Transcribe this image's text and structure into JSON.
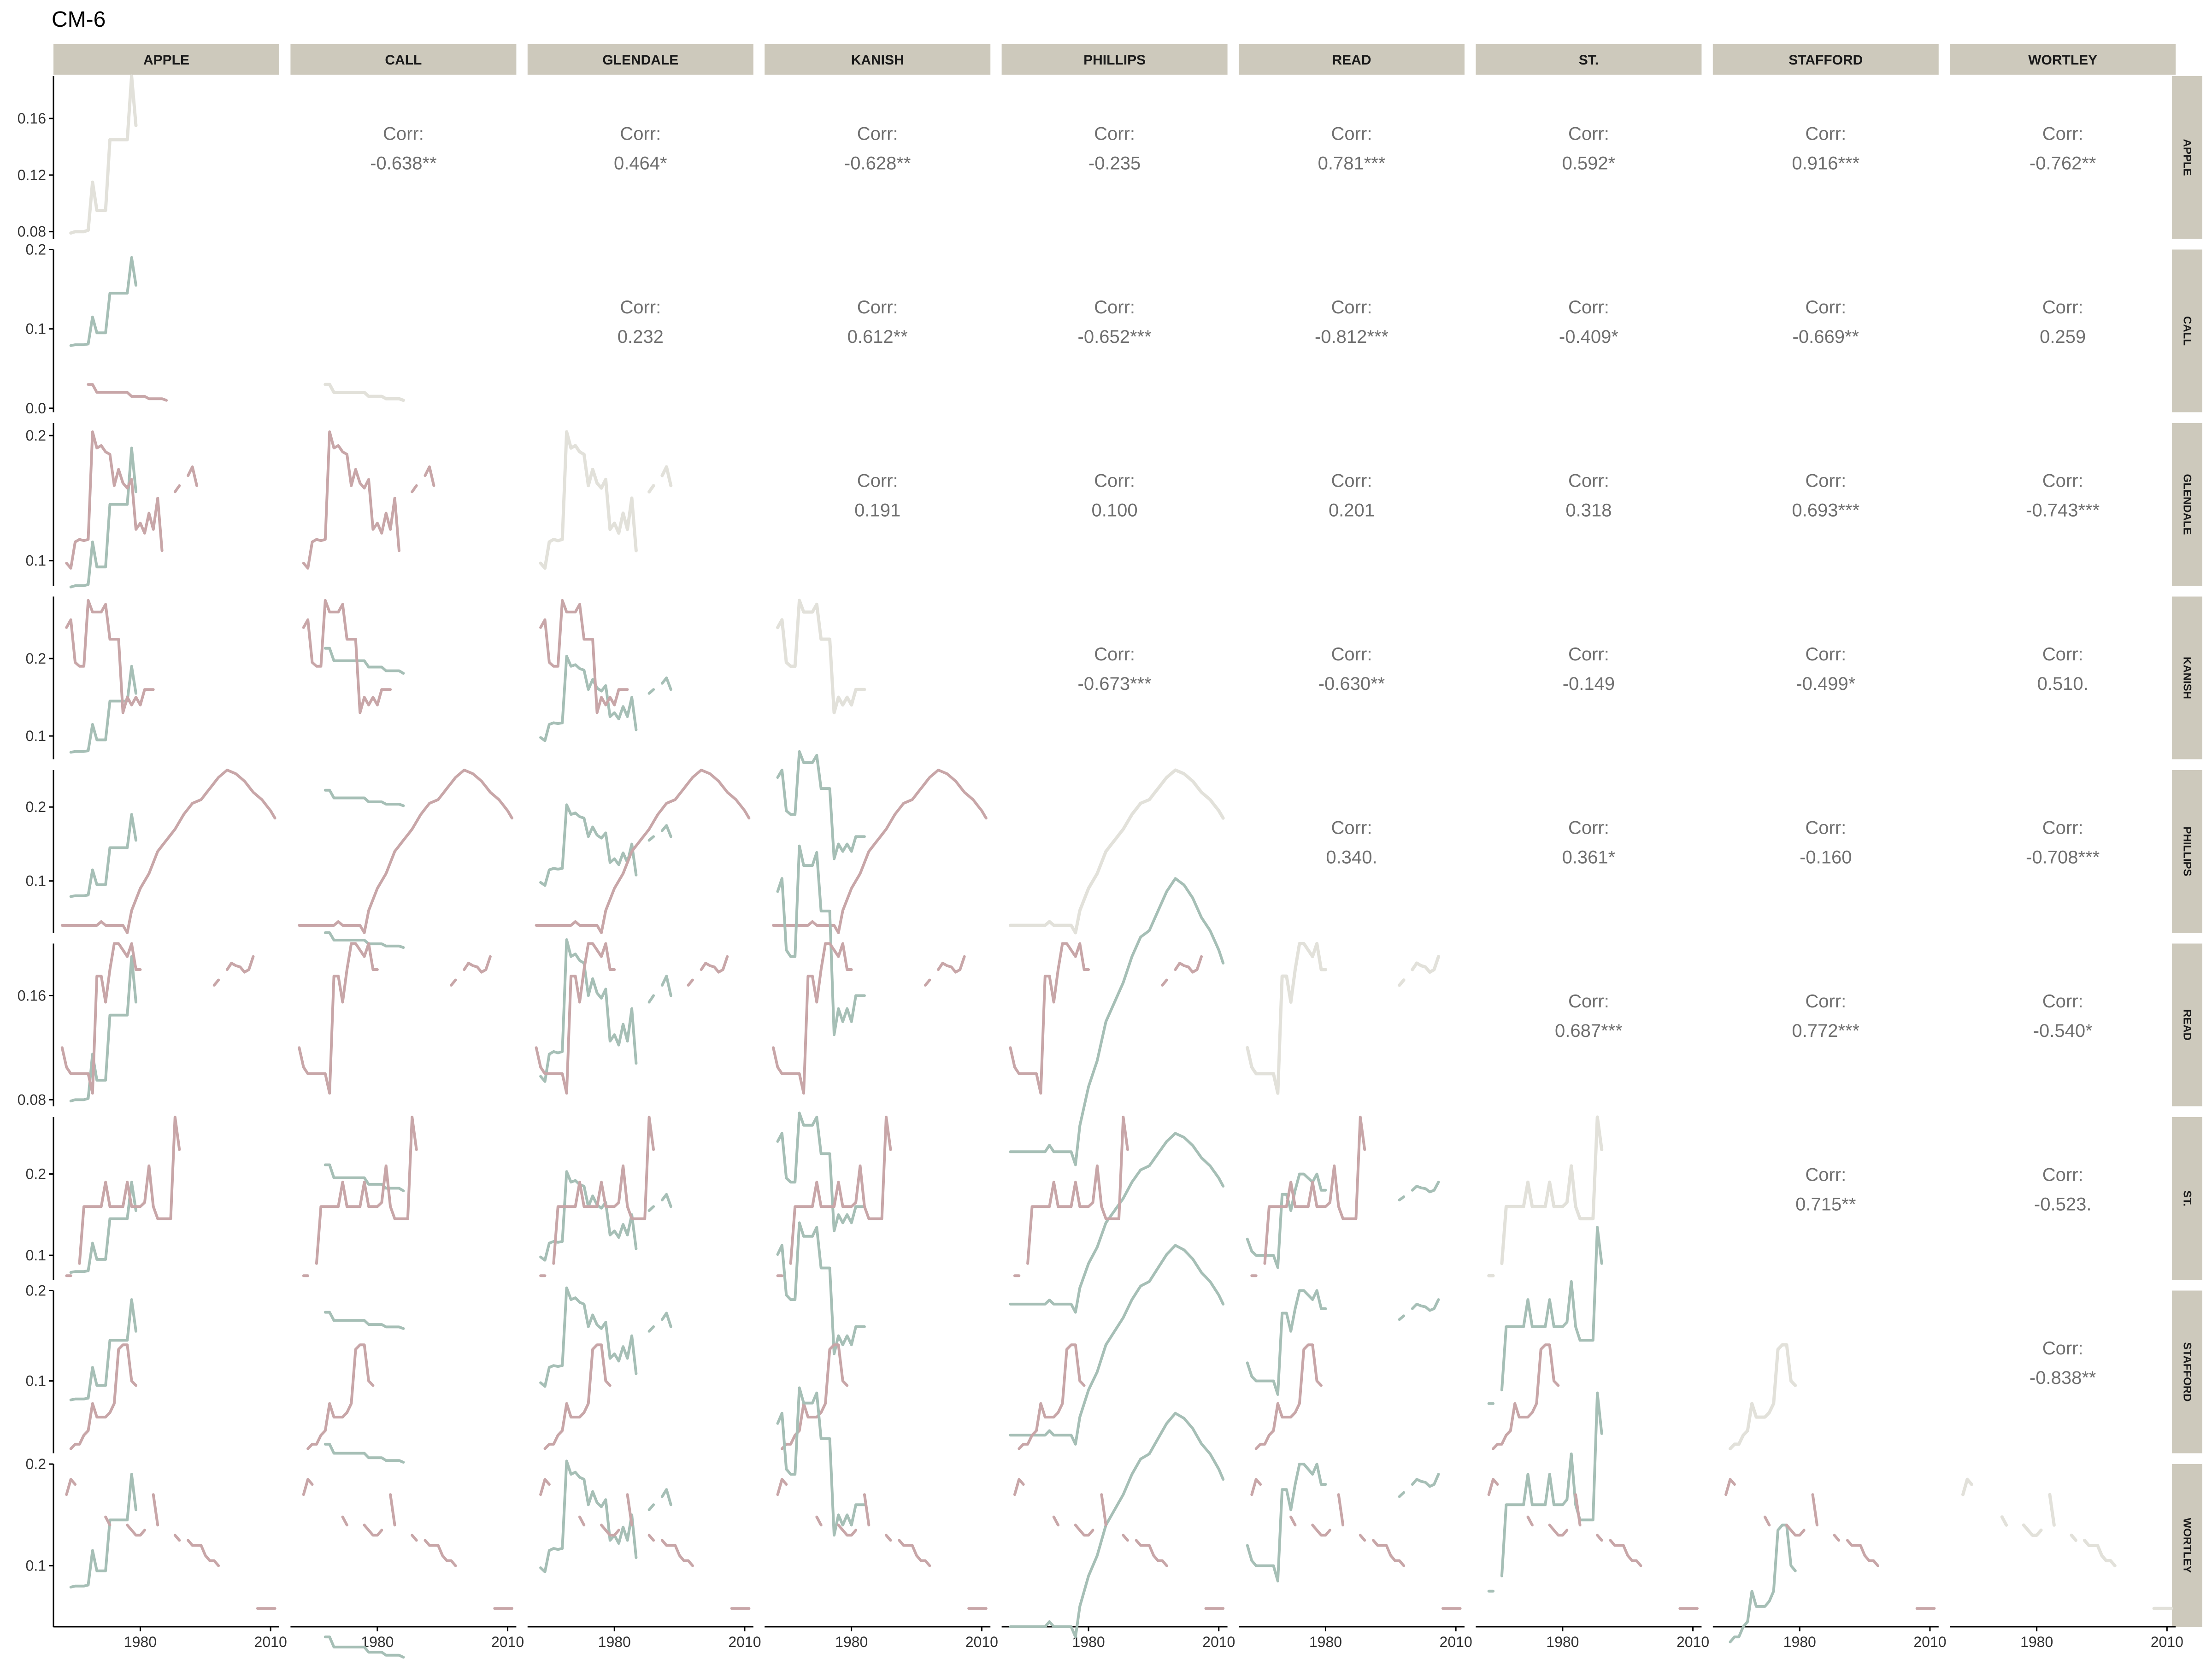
{
  "title": "CM-6",
  "chart_data": {
    "type": "pairs-matrix",
    "title": "CM-6",
    "variables": [
      "APPLE",
      "CALL",
      "GLENDALE",
      "KANISH",
      "PHILLIPS",
      "READ",
      "ST.",
      "STAFFORD",
      "WORTLEY"
    ],
    "x_range": [
      1960,
      2012
    ],
    "x_ticks": [
      1980,
      2010
    ],
    "x_tick_labels": [
      "1980",
      "2010"
    ],
    "row_axes": [
      {
        "ylim": [
          0.075,
          0.19
        ],
        "ticks": [
          0.08,
          0.12,
          0.16
        ],
        "tick_labels": [
          "0.08",
          "0.12",
          "0.16"
        ]
      },
      {
        "ylim": [
          -0.005,
          0.2
        ],
        "ticks": [
          0.0,
          0.1,
          0.2
        ],
        "tick_labels": [
          "0.0",
          "0.1",
          "0.2"
        ]
      },
      {
        "ylim": [
          0.08,
          0.21
        ],
        "ticks": [
          0.1,
          0.2
        ],
        "tick_labels": [
          "0.1",
          "0.2"
        ]
      },
      {
        "ylim": [
          0.07,
          0.28
        ],
        "ticks": [
          0.1,
          0.2
        ],
        "tick_labels": [
          "0.1",
          "0.2"
        ]
      },
      {
        "ylim": [
          0.03,
          0.25
        ],
        "ticks": [
          0.1,
          0.2
        ],
        "tick_labels": [
          "0.1",
          "0.2"
        ]
      },
      {
        "ylim": [
          0.075,
          0.2
        ],
        "ticks": [
          0.08,
          0.16
        ],
        "tick_labels": [
          "0.08",
          "0.16"
        ]
      },
      {
        "ylim": [
          0.07,
          0.27
        ],
        "ticks": [
          0.1,
          0.2
        ],
        "tick_labels": [
          "0.1",
          "0.2"
        ]
      },
      {
        "ylim": [
          0.02,
          0.2
        ],
        "ticks": [
          0.1,
          0.2
        ],
        "tick_labels": [
          "0.1",
          "0.2"
        ]
      },
      {
        "ylim": [
          0.04,
          0.2
        ],
        "ticks": [
          0.1,
          0.2
        ],
        "tick_labels": [
          "0.1",
          "0.2"
        ]
      }
    ],
    "correlation_label": "Corr:",
    "correlations": [
      {
        "row": 0,
        "col": 1,
        "value": "-0.638**"
      },
      {
        "row": 0,
        "col": 2,
        "value": "0.464*"
      },
      {
        "row": 0,
        "col": 3,
        "value": "-0.628**"
      },
      {
        "row": 0,
        "col": 4,
        "value": "-0.235"
      },
      {
        "row": 0,
        "col": 5,
        "value": "0.781***"
      },
      {
        "row": 0,
        "col": 6,
        "value": "0.592*"
      },
      {
        "row": 0,
        "col": 7,
        "value": "0.916***"
      },
      {
        "row": 0,
        "col": 8,
        "value": "-0.762**"
      },
      {
        "row": 1,
        "col": 2,
        "value": "0.232"
      },
      {
        "row": 1,
        "col": 3,
        "value": "0.612**"
      },
      {
        "row": 1,
        "col": 4,
        "value": "-0.652***"
      },
      {
        "row": 1,
        "col": 5,
        "value": "-0.812***"
      },
      {
        "row": 1,
        "col": 6,
        "value": "-0.409*"
      },
      {
        "row": 1,
        "col": 7,
        "value": "-0.669**"
      },
      {
        "row": 1,
        "col": 8,
        "value": "0.259"
      },
      {
        "row": 2,
        "col": 3,
        "value": "0.191"
      },
      {
        "row": 2,
        "col": 4,
        "value": "0.100"
      },
      {
        "row": 2,
        "col": 5,
        "value": "0.201"
      },
      {
        "row": 2,
        "col": 6,
        "value": "0.318"
      },
      {
        "row": 2,
        "col": 7,
        "value": "0.693***"
      },
      {
        "row": 2,
        "col": 8,
        "value": "-0.743***"
      },
      {
        "row": 3,
        "col": 4,
        "value": "-0.673***"
      },
      {
        "row": 3,
        "col": 5,
        "value": "-0.630**"
      },
      {
        "row": 3,
        "col": 6,
        "value": "-0.149"
      },
      {
        "row": 3,
        "col": 7,
        "value": "-0.499*"
      },
      {
        "row": 3,
        "col": 8,
        "value": "0.510."
      },
      {
        "row": 4,
        "col": 5,
        "value": "0.340."
      },
      {
        "row": 4,
        "col": 6,
        "value": "0.361*"
      },
      {
        "row": 4,
        "col": 7,
        "value": "-0.160"
      },
      {
        "row": 4,
        "col": 8,
        "value": "-0.708***"
      },
      {
        "row": 5,
        "col": 6,
        "value": "0.687***"
      },
      {
        "row": 5,
        "col": 7,
        "value": "0.772***"
      },
      {
        "row": 5,
        "col": 8,
        "value": "-0.540*"
      },
      {
        "row": 6,
        "col": 7,
        "value": "0.715**"
      },
      {
        "row": 6,
        "col": 8,
        "value": "-0.523."
      },
      {
        "row": 7,
        "col": 8,
        "value": "-0.838**"
      }
    ],
    "series": {
      "APPLE": [
        [
          1964,
          0.079
        ],
        [
          1965,
          0.08
        ],
        [
          1966,
          0.08
        ],
        [
          1967,
          0.08
        ],
        [
          1968,
          0.081
        ],
        [
          1969,
          0.115
        ],
        [
          1970,
          0.095
        ],
        [
          1971,
          0.095
        ],
        [
          1972,
          0.095
        ],
        [
          1973,
          0.145
        ],
        [
          1974,
          0.145
        ],
        [
          1975,
          0.145
        ],
        [
          1976,
          0.145
        ],
        [
          1977,
          0.145
        ],
        [
          1978,
          0.19
        ],
        [
          1979,
          0.155
        ]
      ],
      "CALL": [
        [
          1966,
          0.033
        ],
        [
          null,
          null
        ],
        [
          1968,
          0.03
        ],
        [
          1969,
          0.03
        ],
        [
          1970,
          0.02
        ],
        [
          1971,
          0.02
        ],
        [
          1972,
          0.02
        ],
        [
          1973,
          0.02
        ],
        [
          1974,
          0.02
        ],
        [
          1975,
          0.02
        ],
        [
          1976,
          0.02
        ],
        [
          1977,
          0.02
        ],
        [
          1978,
          0.015
        ],
        [
          1979,
          0.015
        ],
        [
          1980,
          0.015
        ],
        [
          1981,
          0.015
        ],
        [
          1982,
          0.012
        ],
        [
          1983,
          0.012
        ],
        [
          1984,
          0.012
        ],
        [
          1985,
          0.012
        ],
        [
          1986,
          0.01
        ]
      ],
      "GLENDALE": [
        [
          1963,
          0.098
        ],
        [
          1964,
          0.094
        ],
        [
          1965,
          0.115
        ],
        [
          1966,
          0.117
        ],
        [
          1967,
          0.116
        ],
        [
          1968,
          0.117
        ],
        [
          1969,
          0.203
        ],
        [
          1970,
          0.19
        ],
        [
          1971,
          0.192
        ],
        [
          1972,
          0.187
        ],
        [
          1973,
          0.185
        ],
        [
          1974,
          0.16
        ],
        [
          1975,
          0.173
        ],
        [
          1976,
          0.162
        ],
        [
          1977,
          0.158
        ],
        [
          1978,
          0.165
        ],
        [
          1979,
          0.125
        ],
        [
          1980,
          0.13
        ],
        [
          1981,
          0.122
        ],
        [
          1982,
          0.138
        ],
        [
          1983,
          0.125
        ],
        [
          1984,
          0.15
        ],
        [
          1985,
          0.108
        ],
        [
          null,
          null
        ],
        [
          1988,
          0.155
        ],
        [
          1989,
          0.16
        ],
        [
          null,
          null
        ],
        [
          1991,
          0.168
        ],
        [
          1992,
          0.175
        ],
        [
          1993,
          0.16
        ]
      ],
      "KANISH": [
        [
          1963,
          0.24
        ],
        [
          1964,
          0.25
        ],
        [
          1965,
          0.195
        ],
        [
          1966,
          0.19
        ],
        [
          1967,
          0.19
        ],
        [
          1968,
          0.275
        ],
        [
          1969,
          0.26
        ],
        [
          1970,
          0.26
        ],
        [
          1971,
          0.26
        ],
        [
          1972,
          0.27
        ],
        [
          1973,
          0.225
        ],
        [
          1974,
          0.225
        ],
        [
          1975,
          0.225
        ],
        [
          1976,
          0.13
        ],
        [
          1977,
          0.15
        ],
        [
          1978,
          0.14
        ],
        [
          1979,
          0.15
        ],
        [
          1980,
          0.14
        ],
        [
          1981,
          0.16
        ],
        [
          1982,
          0.16
        ],
        [
          1983,
          0.16
        ]
      ],
      "PHILLIPS": [
        [
          1962,
          0.04
        ],
        [
          1964,
          0.04
        ],
        [
          1966,
          0.04
        ],
        [
          1968,
          0.04
        ],
        [
          1970,
          0.04
        ],
        [
          1971,
          0.045
        ],
        [
          1972,
          0.04
        ],
        [
          1974,
          0.04
        ],
        [
          1976,
          0.04
        ],
        [
          1977,
          0.03
        ],
        [
          1978,
          0.06
        ],
        [
          1980,
          0.09
        ],
        [
          1982,
          0.11
        ],
        [
          1984,
          0.14
        ],
        [
          1986,
          0.155
        ],
        [
          1988,
          0.17
        ],
        [
          1990,
          0.19
        ],
        [
          1992,
          0.205
        ],
        [
          1994,
          0.21
        ],
        [
          1996,
          0.225
        ],
        [
          1998,
          0.24
        ],
        [
          2000,
          0.25
        ],
        [
          2002,
          0.245
        ],
        [
          2004,
          0.235
        ],
        [
          2006,
          0.22
        ],
        [
          2008,
          0.21
        ],
        [
          2010,
          0.195
        ],
        [
          2011,
          0.185
        ]
      ],
      "READ": [
        [
          1962,
          0.12
        ],
        [
          1963,
          0.105
        ],
        [
          1964,
          0.1
        ],
        [
          1965,
          0.1
        ],
        [
          1966,
          0.1
        ],
        [
          1967,
          0.1
        ],
        [
          1968,
          0.1
        ],
        [
          1969,
          0.085
        ],
        [
          1970,
          0.175
        ],
        [
          1971,
          0.175
        ],
        [
          1972,
          0.155
        ],
        [
          1973,
          0.18
        ],
        [
          1974,
          0.2
        ],
        [
          1975,
          0.2
        ],
        [
          1976,
          0.195
        ],
        [
          1977,
          0.19
        ],
        [
          1978,
          0.2
        ],
        [
          1979,
          0.18
        ],
        [
          1980,
          0.18
        ],
        [
          null,
          null
        ],
        [
          1997,
          0.168
        ],
        [
          1998,
          0.172
        ],
        [
          null,
          null
        ],
        [
          2000,
          0.18
        ],
        [
          2001,
          0.185
        ],
        [
          2002,
          0.183
        ],
        [
          2003,
          0.182
        ],
        [
          2004,
          0.178
        ],
        [
          2005,
          0.18
        ],
        [
          2006,
          0.19
        ]
      ],
      "ST.": [
        [
          1963,
          0.075
        ],
        [
          1964,
          0.075
        ],
        [
          null,
          null
        ],
        [
          1966,
          0.09
        ],
        [
          1967,
          0.16
        ],
        [
          1968,
          0.16
        ],
        [
          1969,
          0.16
        ],
        [
          1970,
          0.16
        ],
        [
          1971,
          0.16
        ],
        [
          1972,
          0.19
        ],
        [
          1973,
          0.16
        ],
        [
          1974,
          0.16
        ],
        [
          1975,
          0.16
        ],
        [
          1976,
          0.16
        ],
        [
          1977,
          0.19
        ],
        [
          1978,
          0.16
        ],
        [
          1979,
          0.16
        ],
        [
          1980,
          0.16
        ],
        [
          1981,
          0.165
        ],
        [
          1982,
          0.21
        ],
        [
          1983,
          0.16
        ],
        [
          1984,
          0.145
        ],
        [
          1985,
          0.145
        ],
        [
          1986,
          0.145
        ],
        [
          1987,
          0.145
        ],
        [
          1988,
          0.27
        ],
        [
          1989,
          0.23
        ]
      ],
      "STAFFORD": [
        [
          1964,
          0.025
        ],
        [
          1965,
          0.03
        ],
        [
          1966,
          0.03
        ],
        [
          1967,
          0.04
        ],
        [
          1968,
          0.045
        ],
        [
          1969,
          0.075
        ],
        [
          1970,
          0.06
        ],
        [
          1971,
          0.06
        ],
        [
          1972,
          0.06
        ],
        [
          1973,
          0.065
        ],
        [
          1974,
          0.075
        ],
        [
          1975,
          0.135
        ],
        [
          1976,
          0.14
        ],
        [
          1977,
          0.14
        ],
        [
          1978,
          0.1
        ],
        [
          1979,
          0.095
        ]
      ],
      "WORTLEY": [
        [
          1963,
          0.17
        ],
        [
          1964,
          0.185
        ],
        [
          1965,
          0.18
        ],
        [
          null,
          null
        ],
        [
          1969,
          0.15
        ],
        [
          null,
          null
        ],
        [
          1972,
          0.148
        ],
        [
          1973,
          0.14
        ],
        [
          null,
          null
        ],
        [
          1977,
          0.14
        ],
        [
          1978,
          0.135
        ],
        [
          1979,
          0.13
        ],
        [
          1980,
          0.13
        ],
        [
          1981,
          0.135
        ],
        [
          null,
          null
        ],
        [
          1983,
          0.17
        ],
        [
          1984,
          0.14
        ],
        [
          null,
          null
        ],
        [
          1988,
          0.13
        ],
        [
          1989,
          0.125
        ],
        [
          null,
          null
        ],
        [
          1991,
          0.125
        ],
        [
          1992,
          0.12
        ],
        [
          1993,
          0.12
        ],
        [
          1994,
          0.12
        ],
        [
          1995,
          0.11
        ],
        [
          1996,
          0.105
        ],
        [
          1997,
          0.105
        ],
        [
          1998,
          0.1
        ],
        [
          null,
          null
        ],
        [
          2007,
          0.058
        ],
        [
          2008,
          0.058
        ],
        [
          2009,
          0.058
        ],
        [
          2010,
          0.058
        ],
        [
          2011,
          0.058
        ]
      ]
    },
    "colors": {
      "diagonal": "#e2e1da",
      "row_variable": "#c8a6a8",
      "column_variable": "#a6bfb6",
      "strip_background": "#cdc9bc",
      "corr_text": "#707070",
      "axis": "#000000",
      "tick_text": "#333333"
    },
    "grid": false
  }
}
